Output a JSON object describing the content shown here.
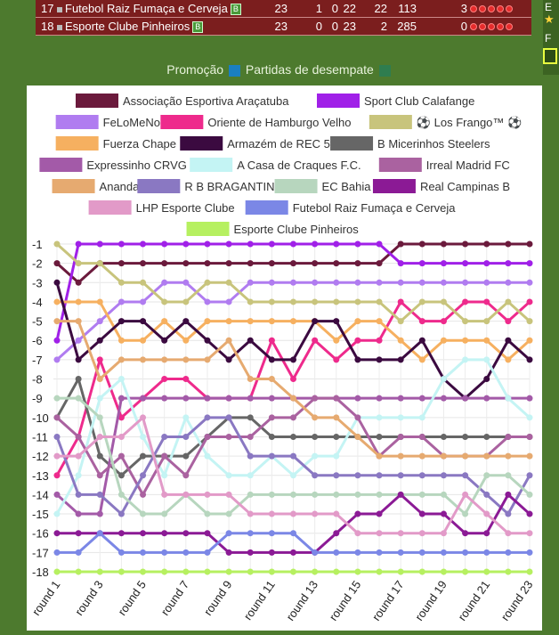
{
  "table": {
    "rows": [
      {
        "pos": "17",
        "team": "Futebol Raiz Fumaça e Cerveja",
        "badge": "B",
        "pts": "23",
        "w": "1",
        "d": "0",
        "l": "22",
        "gf": "22",
        "ga": "113",
        "diff": "3"
      },
      {
        "pos": "18",
        "team": "Esporte Clube Pinheiros",
        "badge": "B",
        "pts": "23",
        "w": "0",
        "d": "0",
        "l": "23",
        "gf": "2",
        "ga": "285",
        "diff": "0"
      }
    ]
  },
  "side": {
    "top_letter": "E",
    "mid_letter": "F",
    "star": "★"
  },
  "legend_bar": {
    "promotion": "Promoção",
    "tiebreak": "Partidas de desempate",
    "promotion_color": "#1a7fc1",
    "tiebreak_color": "#2f7d4f"
  },
  "chart_data": {
    "type": "line",
    "title": "",
    "xlabel": "",
    "ylabel": "",
    "ylim": [
      -18,
      -1
    ],
    "grid": true,
    "legend_position": "top",
    "x": [
      "round 1",
      "round 2",
      "round 3",
      "round 4",
      "round 5",
      "round 6",
      "round 7",
      "round 8",
      "round 9",
      "round 10",
      "round 11",
      "round 12",
      "round 13",
      "round 14",
      "round 15",
      "round 16",
      "round 17",
      "round 18",
      "round 19",
      "round 20",
      "round 21",
      "round 22",
      "round 23"
    ],
    "xtick_labels": [
      "round 1",
      "round 3",
      "round 5",
      "round 7",
      "round 9",
      "round 11",
      "round 13",
      "round 15",
      "round 17",
      "round 19",
      "round 21",
      "round 23"
    ],
    "ytick_labels": [
      "-1",
      "-2",
      "-3",
      "-4",
      "-5",
      "-6",
      "-7",
      "-8",
      "-9",
      "-10",
      "-11",
      "-12",
      "-13",
      "-14",
      "-15",
      "-16",
      "-17",
      "-18"
    ],
    "series": [
      {
        "name": "Associação Esportiva Araçatuba",
        "color": "#6b1a3c",
        "values": [
          -2,
          -3,
          -2,
          -2,
          -2,
          -2,
          -2,
          -2,
          -2,
          -2,
          -2,
          -2,
          -2,
          -2,
          -2,
          -2,
          -1,
          -1,
          -1,
          -1,
          -1,
          -1,
          -1
        ]
      },
      {
        "name": "Sport Club Calafange",
        "color": "#a020e8",
        "values": [
          -6,
          -1,
          -1,
          -1,
          -1,
          -1,
          -1,
          -1,
          -1,
          -1,
          -1,
          -1,
          -1,
          -1,
          -1,
          -1,
          -2,
          -2,
          -2,
          -2,
          -2,
          -2,
          -2
        ]
      },
      {
        "name": "FeLoMeNoS",
        "color": "#b07cf0",
        "values": [
          -7,
          -6,
          -5,
          -4,
          -4,
          -3,
          -3,
          -4,
          -4,
          -3,
          -3,
          -3,
          -3,
          -3,
          -3,
          -3,
          -3,
          -3,
          -3,
          -3,
          -3,
          -3,
          -3
        ]
      },
      {
        "name": "Oriente de Hamburgo Velho",
        "color": "#ee2a8c",
        "values": [
          -13,
          -11,
          -7,
          -10,
          -9,
          -8,
          -8,
          -9,
          -9,
          -9,
          -6,
          -8,
          -6,
          -7,
          -6,
          -6,
          -4,
          -5,
          -5,
          -4,
          -4,
          -5,
          -4
        ]
      },
      {
        "name": "⚽ Los Frango™ ⚽",
        "color": "#c8c47c",
        "values": [
          -1,
          -2,
          -2,
          -3,
          -3,
          -4,
          -4,
          -3,
          -3,
          -4,
          -4,
          -4,
          -4,
          -4,
          -4,
          -4,
          -5,
          -4,
          -4,
          -5,
          -5,
          -4,
          -5
        ]
      },
      {
        "name": "Fuerza Chape",
        "color": "#f6b060",
        "values": [
          -4,
          -4,
          -4,
          -6,
          -6,
          -5,
          -6,
          -5,
          -5,
          -5,
          -5,
          -5,
          -5,
          -6,
          -5,
          -5,
          -6,
          -7,
          -6,
          -6,
          -6,
          -7,
          -6
        ]
      },
      {
        "name": "Armazém de REC 5",
        "color": "#3b0a40",
        "values": [
          -3,
          -7,
          -6,
          -5,
          -5,
          -6,
          -5,
          -6,
          -7,
          -6,
          -7,
          -7,
          -5,
          -5,
          -7,
          -7,
          -7,
          -6,
          -8,
          -9,
          -8,
          -6,
          -7
        ]
      },
      {
        "name": "B Micerinhos Steelers",
        "color": "#666666",
        "values": [
          -10,
          -8,
          -12,
          -13,
          -12,
          -12,
          -12,
          -11,
          -10,
          -10,
          -11,
          -11,
          -11,
          -11,
          -11,
          -11,
          -11,
          -11,
          -11,
          -11,
          -11,
          -11,
          -11
        ]
      },
      {
        "name": "Expressinho CRVG",
        "color": "#a35aa8",
        "values": [
          -14,
          -15,
          -15,
          -9,
          -9,
          -9,
          -9,
          -9,
          -9,
          -9,
          -9,
          -9,
          -9,
          -9,
          -9,
          -9,
          -9,
          -9,
          -9,
          -9,
          -9,
          -9,
          -9
        ]
      },
      {
        "name": "A Casa de Craques F.C.",
        "color": "#c4f4f4",
        "values": [
          -15,
          -13,
          -9,
          -8,
          -11,
          -13,
          -10,
          -12,
          -13,
          -13,
          -12,
          -13,
          -12,
          -12,
          -10,
          -10,
          -10,
          -10,
          -8,
          -7,
          -7,
          -9,
          -10
        ]
      },
      {
        "name": "Irreal Madrid FC",
        "color": "#aa62a0",
        "values": [
          -10,
          -11,
          -13,
          -12,
          -14,
          -12,
          -13,
          -11,
          -11,
          -11,
          -10,
          -10,
          -9,
          -9,
          -10,
          -12,
          -11,
          -11,
          -12,
          -12,
          -12,
          -11,
          -11
        ]
      },
      {
        "name": "Ananda",
        "color": "#e6aa70",
        "values": [
          -5,
          -5,
          -8,
          -7,
          -7,
          -7,
          -7,
          -7,
          -6,
          -8,
          -8,
          -9,
          -10,
          -10,
          -11,
          -12,
          -12,
          -12,
          -12,
          -12,
          -12,
          -12,
          -12
        ]
      },
      {
        "name": "R B BRAGANTINO",
        "color": "#8a78c2",
        "values": [
          -11,
          -14,
          -14,
          -15,
          -13,
          -11,
          -11,
          -10,
          -10,
          -12,
          -12,
          -12,
          -13,
          -13,
          -13,
          -13,
          -13,
          -13,
          -13,
          -13,
          -14,
          -15,
          -13
        ]
      },
      {
        "name": "EC Bahia",
        "color": "#b7d6be",
        "values": [
          -9,
          -9,
          -10,
          -14,
          -15,
          -15,
          -14,
          -15,
          -15,
          -14,
          -14,
          -14,
          -14,
          -14,
          -14,
          -14,
          -14,
          -14,
          -14,
          -15,
          -13,
          -13,
          -14
        ]
      },
      {
        "name": "Real Campinas B",
        "color": "#8b1a95",
        "values": [
          -16,
          -16,
          -16,
          -16,
          -16,
          -16,
          -16,
          -16,
          -17,
          -17,
          -17,
          -17,
          -17,
          -16,
          -15,
          -15,
          -14,
          -15,
          -15,
          -16,
          -16,
          -14,
          -15
        ]
      },
      {
        "name": "LHP Esporte Clube",
        "color": "#e29ac8",
        "values": [
          -12,
          -12,
          -11,
          -11,
          -10,
          -14,
          -14,
          -14,
          -14,
          -15,
          -15,
          -15,
          -15,
          -15,
          -16,
          -16,
          -16,
          -16,
          -16,
          -14,
          -15,
          -16,
          -16
        ]
      },
      {
        "name": "Futebol Raiz Fumaça e Cerveja",
        "color": "#7b87e6",
        "values": [
          -17,
          -17,
          -16,
          -17,
          -17,
          -17,
          -17,
          -17,
          -16,
          -16,
          -16,
          -16,
          -17,
          -17,
          -17,
          -17,
          -17,
          -17,
          -17,
          -17,
          -17,
          -17,
          -17
        ]
      },
      {
        "name": "Esporte Clube Pinheiros",
        "color": "#b6f060",
        "values": [
          -18,
          -18,
          -18,
          -18,
          -18,
          -18,
          -18,
          -18,
          -18,
          -18,
          -18,
          -18,
          -18,
          -18,
          -18,
          -18,
          -18,
          -18,
          -18,
          -18,
          -18,
          -18,
          -18
        ]
      }
    ]
  }
}
